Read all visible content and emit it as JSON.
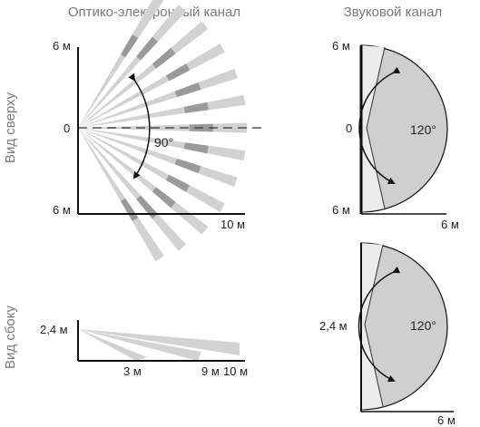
{
  "headers": {
    "optical": "Оптико-электронный канал",
    "sound": "Звуковой канал"
  },
  "side_labels": {
    "top_view": "Вид сверху",
    "side_view": "Вид сбоку"
  },
  "optical_top": {
    "y_top": "6 м",
    "y_mid": "0",
    "y_bottom": "6 м",
    "x_end": "10 м",
    "angle": "90°"
  },
  "optical_side": {
    "height": "2,4 м",
    "x1": "3 м",
    "x2": "9 м",
    "x3": "10 м"
  },
  "sound_top": {
    "y_top": "6 м",
    "y_mid": "0",
    "y_bottom": "6 м",
    "x_end": "6 м",
    "angle": "120°"
  },
  "sound_side": {
    "height": "2,4 м",
    "x_end": "6 м",
    "angle": "120°"
  },
  "colors": {
    "beam_light": "#d2d2d2",
    "beam_dark": "#9a9a9a",
    "zone_fill": "#cfcfcf",
    "near_fill": "#ececec",
    "axis": "#111111",
    "header_text": "#7a7a7a"
  }
}
